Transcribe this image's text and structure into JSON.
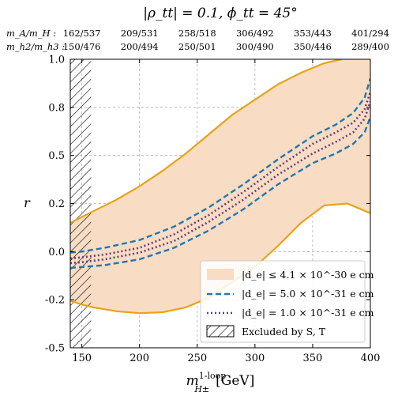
{
  "chart_data": {
    "type": "line",
    "title": "|ρ_tt| = 0.1, ϕ_tt = 45°",
    "xlabel": "m^1-loop_H±",
    "xlabel_main": "m",
    "xlabel_sup": "1-loop",
    "xlabel_sub": "H±",
    "xlabel_unit": "[GeV]",
    "ylabel": "r",
    "xlim": [
      140,
      400
    ],
    "ylim": [
      -0.5,
      1.0
    ],
    "x_ticks": [
      150,
      200,
      250,
      300,
      350,
      400
    ],
    "y_ticks": [
      {
        "value": -0.5,
        "label": "-0.5"
      },
      {
        "value": -0.25,
        "label": "-0.2"
      },
      {
        "value": 0.0,
        "label": "0.0"
      },
      {
        "value": 0.25,
        "label": "0.2"
      },
      {
        "value": 0.5,
        "label": "0.5"
      },
      {
        "value": 0.75,
        "label": "0.8"
      },
      {
        "value": 1.0,
        "label": "1.0"
      }
    ],
    "grid": true,
    "legend_position": "lower-right",
    "top_axis": {
      "row1_label": "m_A/m_H :",
      "row1_values": [
        "162/537",
        "209/531",
        "258/518",
        "306/492",
        "353/443",
        "401/294"
      ],
      "row2_label": "m_h2/m_h3 :",
      "row2_values": [
        "150/476",
        "200/494",
        "250/501",
        "300/490",
        "350/446",
        "289/400"
      ],
      "positions": [
        150,
        200,
        250,
        300,
        350,
        400
      ]
    },
    "excluded_region": {
      "x_range": [
        140,
        158
      ],
      "label": "Excluded by S, T"
    },
    "band": {
      "name": "|d_e| ≤ 4.1 × 10^-30 e cm",
      "upper": {
        "x": [
          140,
          150,
          160,
          180,
          200,
          220,
          240,
          260,
          280,
          300,
          320,
          340,
          360,
          375
        ],
        "y": [
          0.15,
          0.18,
          0.21,
          0.27,
          0.34,
          0.42,
          0.51,
          0.61,
          0.71,
          0.79,
          0.87,
          0.93,
          0.98,
          1.0
        ]
      },
      "lower": {
        "x": [
          140,
          150,
          160,
          180,
          200,
          220,
          240,
          260,
          270,
          280,
          300,
          320,
          340,
          360,
          380,
          400
        ],
        "y": [
          -0.255,
          -0.275,
          -0.29,
          -0.31,
          -0.32,
          -0.315,
          -0.29,
          -0.24,
          -0.2,
          -0.16,
          -0.08,
          0.03,
          0.15,
          0.24,
          0.25,
          0.2
        ]
      },
      "color": "#f8dcc4",
      "line_color": "#e8a317"
    },
    "series": [
      {
        "name": "|d_e| = 5.0 × 10^-31 e cm",
        "style": "dashed",
        "color": "#1f77b4",
        "upper": {
          "x": [
            140,
            150,
            170,
            200,
            230,
            260,
            290,
            320,
            350,
            370,
            385,
            395,
            400
          ],
          "y": [
            -0.005,
            0.0,
            0.02,
            0.06,
            0.13,
            0.23,
            0.35,
            0.48,
            0.6,
            0.66,
            0.72,
            0.8,
            0.9
          ]
        },
        "lower": {
          "x": [
            140,
            150,
            170,
            200,
            230,
            260,
            290,
            320,
            350,
            370,
            385,
            395,
            400
          ],
          "y": [
            -0.085,
            -0.08,
            -0.07,
            -0.04,
            0.02,
            0.11,
            0.22,
            0.35,
            0.46,
            0.51,
            0.56,
            0.62,
            0.7
          ]
        }
      },
      {
        "name": "|d_e| = 1.0 × 10^-31 e cm",
        "style": "dotted",
        "color": "#6a3d7a",
        "upper": {
          "x": [
            140,
            150,
            170,
            200,
            230,
            260,
            290,
            320,
            350,
            370,
            385,
            395,
            400
          ],
          "y": [
            -0.035,
            -0.03,
            -0.015,
            0.02,
            0.09,
            0.19,
            0.31,
            0.44,
            0.56,
            0.62,
            0.67,
            0.74,
            0.83
          ]
        },
        "lower": {
          "x": [
            140,
            150,
            170,
            200,
            230,
            260,
            290,
            320,
            350,
            370,
            385,
            395,
            400
          ],
          "y": [
            -0.06,
            -0.055,
            -0.04,
            -0.005,
            0.055,
            0.155,
            0.27,
            0.4,
            0.51,
            0.57,
            0.62,
            0.69,
            0.78
          ]
        }
      }
    ]
  }
}
